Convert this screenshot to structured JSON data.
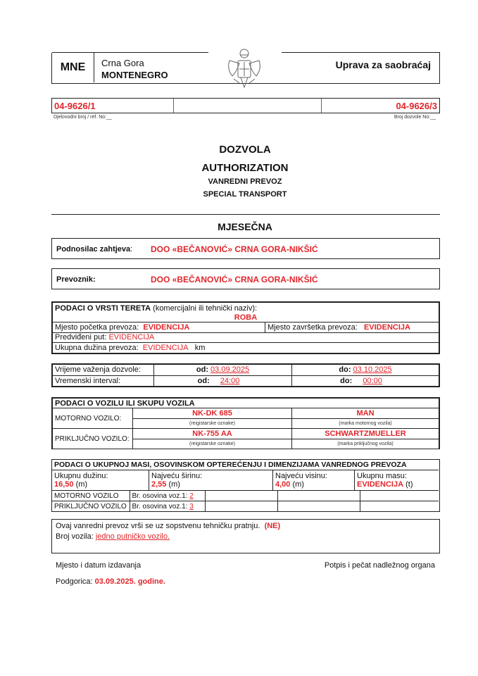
{
  "header": {
    "country_code": "MNE",
    "country_local": "Crna Gora",
    "country_en": "MONTENEGRO",
    "authority": "Uprava za saobraćaj",
    "emblem_icon": "montenegro-coat-of-arms-icon"
  },
  "refs": {
    "ref_no": "04-9626/1",
    "ref_label": "Djelovodni broj / ref. No:__",
    "permit_no": "04-9626/3",
    "permit_label": "Broj dozvole No:__"
  },
  "title": {
    "line1": "DOZVOLA",
    "line2": "AUTHORIZATION",
    "line3": "VANREDNI PREVOZ",
    "line4": "SPECIAL TRANSPORT",
    "period": "MJESEČNA"
  },
  "applicant": {
    "label": "Podnosilac zahtjeva",
    "colon": ":",
    "value": "DOO «BEČANOVIĆ» CRNA GORA-NIKŠIĆ"
  },
  "carrier": {
    "label": "Prevoznik:",
    "value": "DOO «BEČANOVIĆ» CRNA GORA-NIKŠIĆ"
  },
  "cargo": {
    "heading": "PODACI O VRSTI TERETA",
    "heading_note": "(komercijalni ili tehnički naziv):",
    "type": "ROBA",
    "start_label": "Mjesto početka prevoza:",
    "start_value": "EVIDENCIJA",
    "end_label": "Mjesto završetka prevoza:",
    "end_value": "EVIDENCIJA",
    "route_label": "Predviđeni put:",
    "route_value": "EVIDENCIJA",
    "length_label": "Ukupna dužina prevoza:",
    "length_value": "EVIDENCIJA",
    "length_unit": "km"
  },
  "validity": {
    "valid_label": "Vrijeme važenja dozvole:",
    "from_label": "od:",
    "valid_from": "03.09.2025",
    "to_label": "do:",
    "valid_to": "03.10.2025",
    "interval_label": "Vremenski interval:",
    "interval_from": "24:00",
    "interval_to": "00:00"
  },
  "vehicle": {
    "heading": "PODACI O VOZILU ILI SKUPU  VOZILA",
    "motor_label": "MOTORNO VOZILO:",
    "motor_plate": "NK-DK 685",
    "motor_plate_note": "(reigistarske oznake)",
    "motor_make": "MAN",
    "motor_make_note": "(marka motornog vozila)",
    "trailer_label": "PRIKLJUČNO VOZILO:",
    "trailer_plate": "NK-755 AA",
    "trailer_plate_note": "(reigistarske oznake)",
    "trailer_make": "SCHWARTZMUELLER",
    "trailer_make_note": "(marka priključnog vozila)"
  },
  "dimensions": {
    "heading": "PODACI O UKUPNOJ MASI, OSOVINSKOM  OPTEREĆENJU I  DIMENZIJAMA VANREDNOG PREVOZA",
    "length_label": "Ukupnu dužinu:",
    "length_value": "16,50",
    "length_unit": "(m)",
    "width_label": "Najveću širinu:",
    "width_value": "2,55",
    "width_unit": "(m)",
    "height_label": "Najveću visinu:",
    "height_value": "4,00",
    "height_unit": "(m)",
    "mass_label": "Ukupnu masu:",
    "mass_value": "EVIDENCIJA",
    "mass_unit": "(t)",
    "motor_label": "MOTORNO VOZILO",
    "motor_axles_label": "Br. osovina voz.1:",
    "motor_axles": "2",
    "trailer_label": "PRIKLJUČNO VOZILO",
    "trailer_axles_label": "Br. osovina voz.1:",
    "trailer_axles": "3"
  },
  "escort": {
    "text": "Ovaj vanredni prevoz vrši se uz sopstvenu tehničku pratnju.",
    "answer": "(NE)",
    "count_label": "Broj vozila:",
    "count_value": "jedno putničko vozilo."
  },
  "footer": {
    "place_date_label": "Mjesto i datum izdavanja",
    "place": "Podgorica:",
    "date": "03.09.2025. godine.",
    "signature_label": "Potpis i pečat nadležnog organa"
  }
}
